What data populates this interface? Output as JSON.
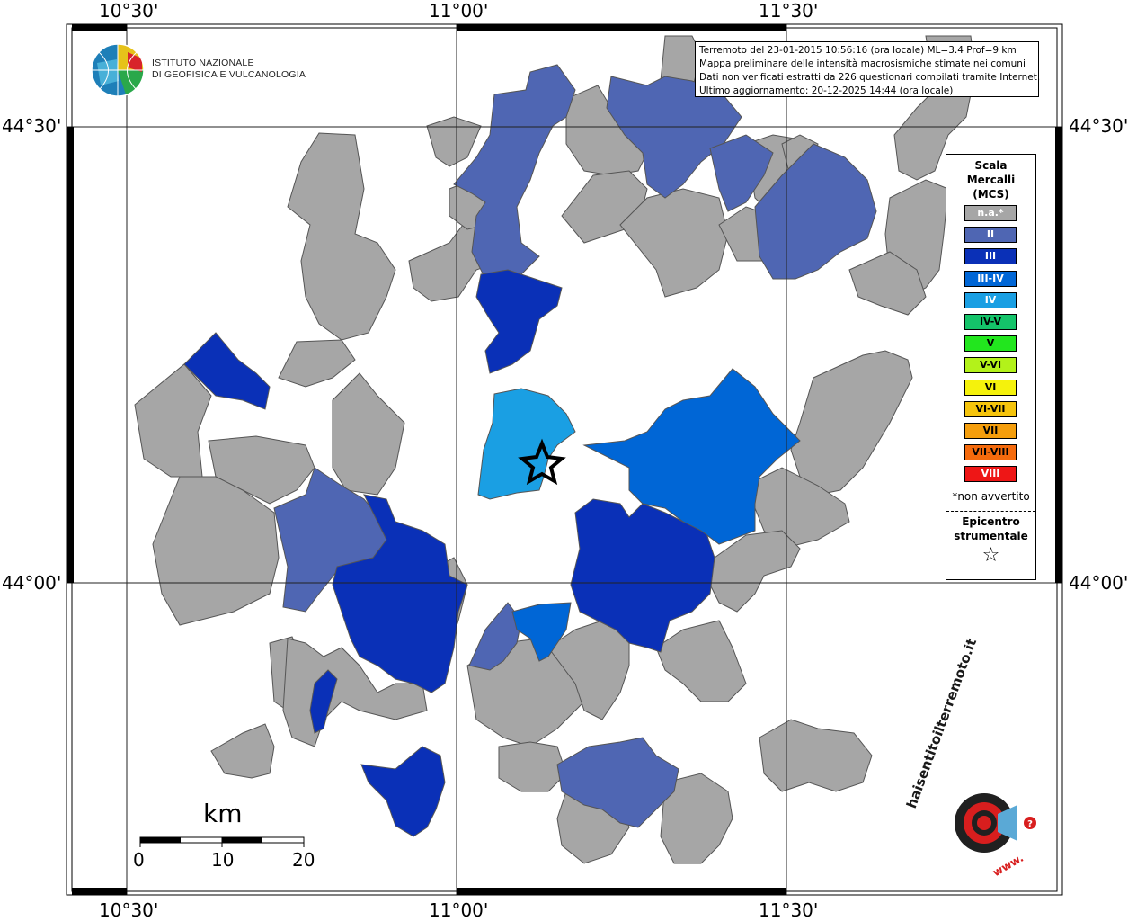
{
  "info": {
    "line1": "Terremoto del 23-01-2015 10:56:16 (ora locale) ML=3.4 Prof=9 km",
    "line2": "Mappa preliminare delle intensità macrosismiche stimate nei comuni",
    "line3": "Dati non verificati estratti da 226 questionari compilati tramite Internet.",
    "line4": "Ultimo aggiornamento: 20-12-2025 14:44 (ora locale)"
  },
  "logo": {
    "line1": "ISTITUTO NAZIONALE",
    "line2": "DI GEOFISICA E VULCANOLOGIA"
  },
  "axes": {
    "top": [
      "10°30'",
      "11°00'",
      "11°30'"
    ],
    "bottom": [
      "10°30'",
      "11°00'",
      "11°30'"
    ],
    "left": [
      "44°30'",
      "44°00'"
    ],
    "right": [
      "44°30'",
      "44°00'"
    ]
  },
  "legend": {
    "title": "Scala Mercalli (MCS)",
    "items": [
      {
        "label": "n.a.*",
        "color": "#a6a6a6",
        "text_color": "#ffffff"
      },
      {
        "label": "II",
        "color": "#4f66b3",
        "text_color": "#ffffff"
      },
      {
        "label": "III",
        "color": "#0a30b7",
        "text_color": "#ffffff"
      },
      {
        "label": "III-IV",
        "color": "#0066d6",
        "text_color": "#ffffff"
      },
      {
        "label": "IV",
        "color": "#1a9fe3",
        "text_color": "#ffffff"
      },
      {
        "label": "IV-V",
        "color": "#14c46a",
        "text_color": "#000000"
      },
      {
        "label": "V",
        "color": "#22e61e",
        "text_color": "#000000"
      },
      {
        "label": "V-VI",
        "color": "#b3f21a",
        "text_color": "#000000"
      },
      {
        "label": "VI",
        "color": "#f5f20c",
        "text_color": "#000000"
      },
      {
        "label": "VI-VII",
        "color": "#f5c40c",
        "text_color": "#000000"
      },
      {
        "label": "VII",
        "color": "#f59e0c",
        "text_color": "#000000"
      },
      {
        "label": "VII-VIII",
        "color": "#f56a0c",
        "text_color": "#000000"
      },
      {
        "label": "VIII",
        "color": "#ee1616",
        "text_color": "#ffffff"
      }
    ],
    "note": "*non avvertito",
    "epicenter_label": "Epicentro strumentale",
    "epicenter_symbol": "☆"
  },
  "scale_bar": {
    "unit": "km",
    "ticks": [
      "0",
      "10",
      "20"
    ]
  },
  "footer_logo": {
    "text": "haisentitoilterremoto.it",
    "prefix": "www."
  }
}
